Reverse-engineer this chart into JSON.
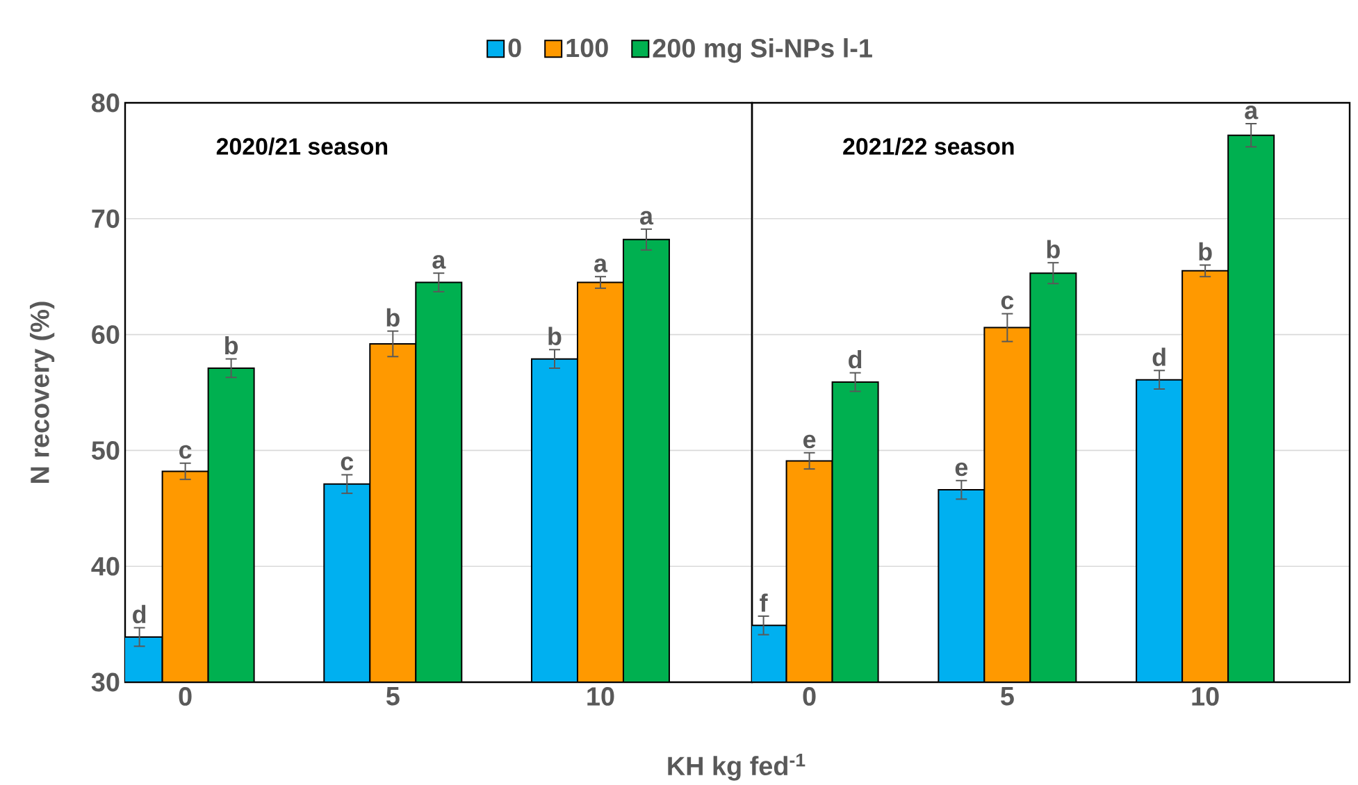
{
  "chart_data": [
    {
      "type": "bar",
      "categories": [
        "0",
        "5",
        "10"
      ],
      "xlabel": "KH kg fed$^{-1}$",
      "ylabel": "N recovery (%)",
      "annotations": [
        "2020/21 season"
      ],
      "ylim": [
        30,
        80
      ],
      "yticks": [
        30,
        40,
        50,
        60,
        70,
        80
      ],
      "grid": "y",
      "legend": "top",
      "tick_labels": "all",
      "series": [
        {
          "name": "0",
          "color": "#00b0f0",
          "values": [
            33.9,
            47.1,
            57.9
          ],
          "errors": [
            0.8,
            0.8,
            0.8
          ],
          "value_labels": [
            "d",
            "c",
            "b"
          ]
        },
        {
          "name": "100",
          "color": "#ff9900",
          "values": [
            48.2,
            59.2,
            64.5
          ],
          "errors": [
            0.7,
            1.1,
            0.5
          ],
          "value_labels": [
            "c",
            "b",
            "a"
          ]
        },
        {
          "name": "200 mg Si-NPs l-1",
          "color": "#00b050",
          "values": [
            57.1,
            64.5,
            68.2
          ],
          "errors": [
            0.8,
            0.8,
            0.9
          ],
          "value_labels": [
            "b",
            "a",
            "a"
          ]
        }
      ]
    },
    {
      "type": "bar",
      "categories": [
        "0",
        "5",
        "10"
      ],
      "annotations": [
        "2021/22 season"
      ],
      "ylim": [
        30,
        80
      ],
      "yticks": [
        30,
        40,
        50,
        60,
        70,
        80
      ],
      "grid": "y",
      "tick_labels": "x",
      "series": [
        {
          "color": "#00b0f0",
          "values": [
            34.9,
            46.6,
            56.1
          ],
          "errors": [
            0.8,
            0.8,
            0.8
          ],
          "value_labels": [
            "f",
            "e",
            "d"
          ]
        },
        {
          "color": "#ff9900",
          "values": [
            49.1,
            60.6,
            65.5
          ],
          "errors": [
            0.7,
            1.2,
            0.5
          ],
          "value_labels": [
            "e",
            "c",
            "b"
          ]
        },
        {
          "color": "#00b050",
          "values": [
            55.9,
            65.3,
            77.2
          ],
          "errors": [
            0.8,
            0.9,
            1.0
          ],
          "value_labels": [
            "d",
            "b",
            "a"
          ]
        }
      ]
    }
  ]
}
